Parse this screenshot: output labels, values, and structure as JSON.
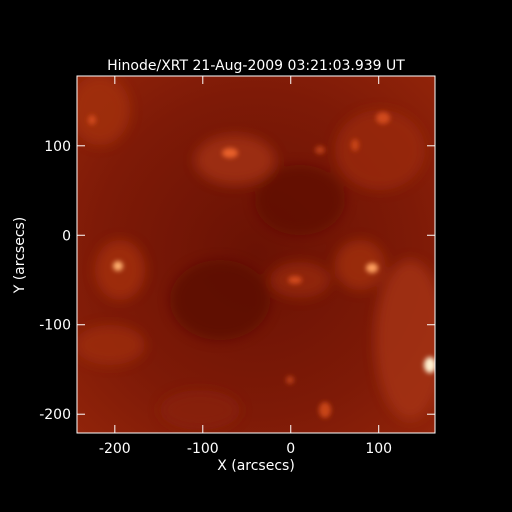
{
  "chart_data": {
    "type": "image",
    "title": "Hinode/XRT 21-Aug-2009 03:21:03.939 UT",
    "x_label": "X (arcsecs)",
    "y_label": "Y (arcsecs)",
    "xlim": [
      -243,
      164
    ],
    "ylim": [
      -221,
      178
    ],
    "xticks": [
      -200,
      -100,
      0,
      100
    ],
    "yticks": [
      -200,
      -100,
      0,
      100
    ]
  }
}
